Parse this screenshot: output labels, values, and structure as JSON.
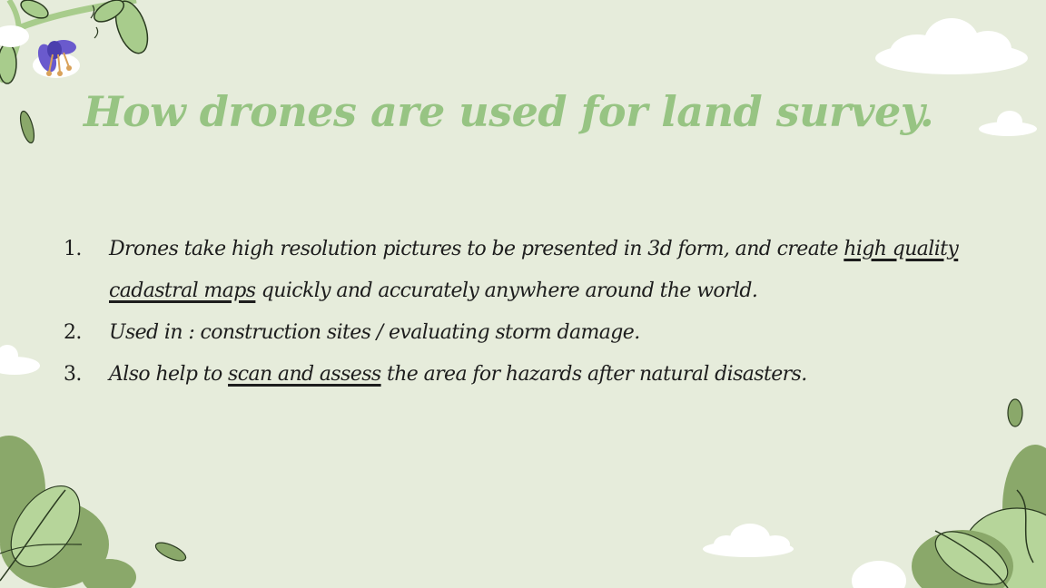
{
  "slide": {
    "title": "How drones are used for land survey.",
    "items": [
      {
        "number": "1.",
        "segments": [
          "Drones take high resolution pictures to be presented in 3d form, and create ",
          "high quality cadastral maps",
          " quickly and accurately anywhere around the world."
        ]
      },
      {
        "number": "2.",
        "segments": [
          "Used in : construction sites / evaluating storm damage."
        ]
      },
      {
        "number": "3.",
        "segments": [
          "Also help to ",
          "scan and assess",
          " the area for hazards after natural disasters."
        ]
      }
    ]
  },
  "colors": {
    "background": "#e6ecdb",
    "title": "#97c483",
    "leaf_dark": "#8aa86a",
    "leaf_light": "#b6d59a",
    "flower": "#6a5acd",
    "cloud": "#ffffff"
  },
  "decorations": [
    "vine-icon",
    "flower-icon",
    "cloud-icon",
    "leaf-icon",
    "bush-icon"
  ]
}
